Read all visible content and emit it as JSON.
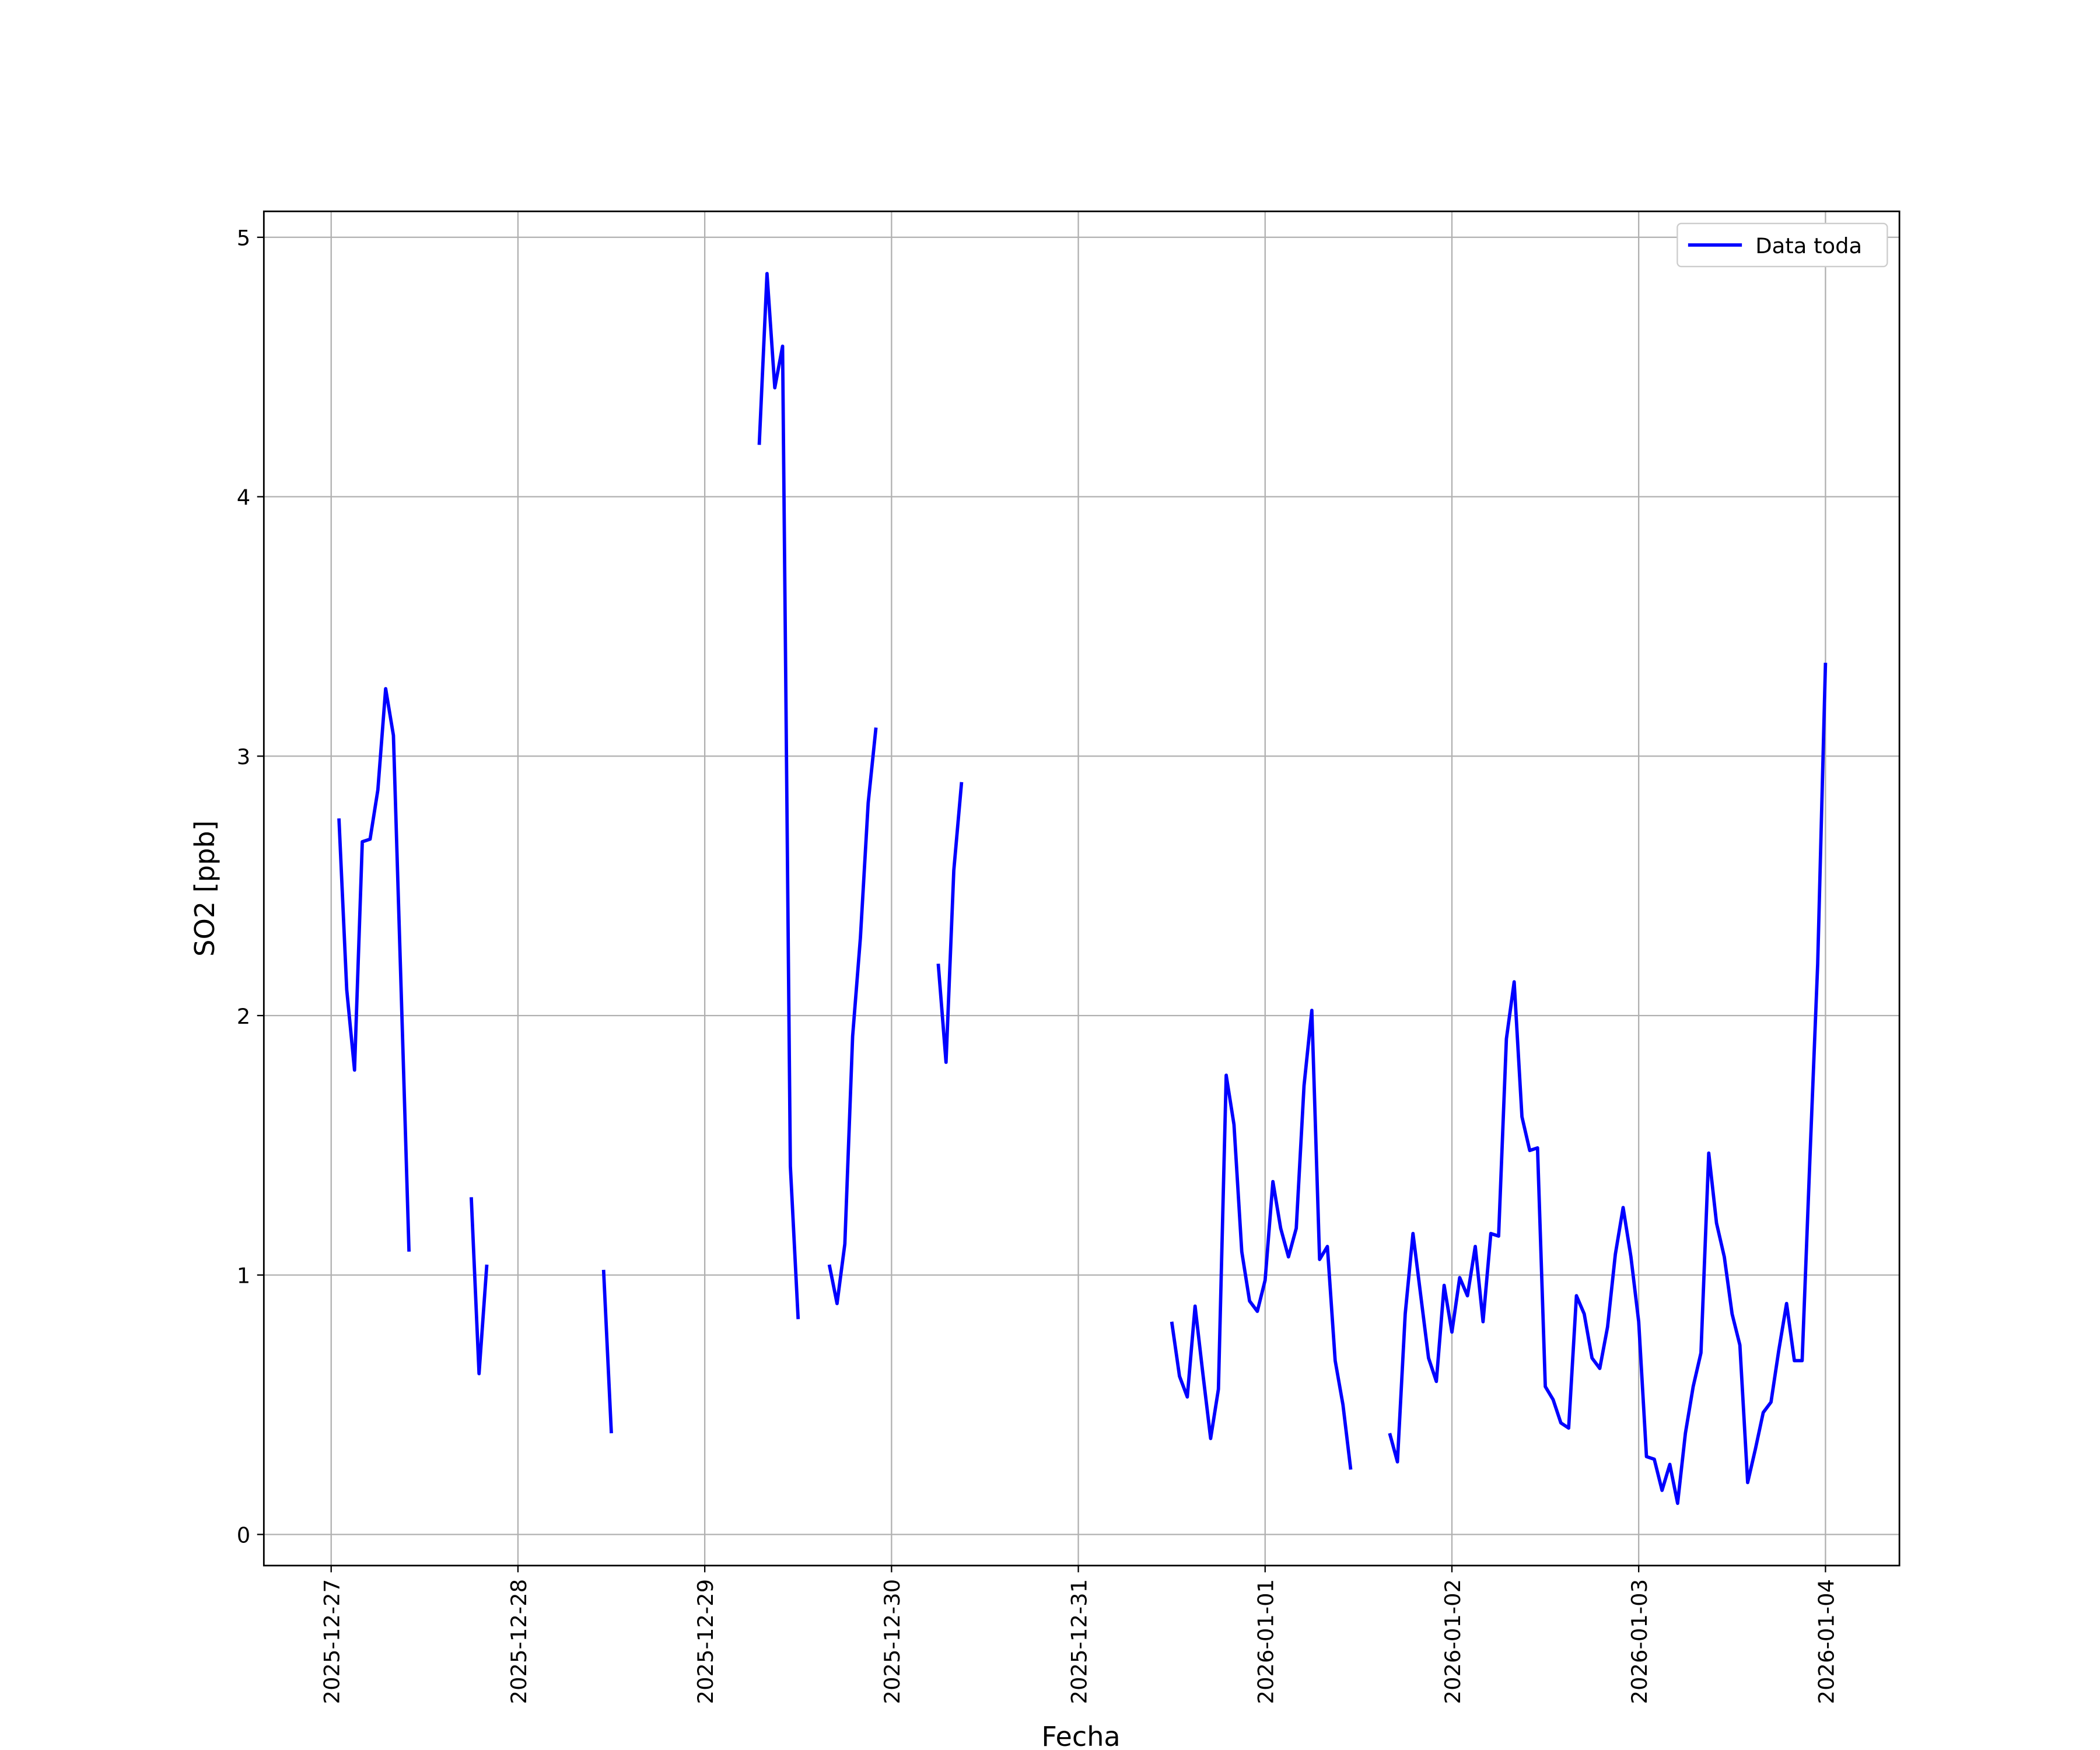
{
  "chart_data": {
    "type": "line",
    "x_label": "Fecha",
    "y_label": "SO2 [ppb]",
    "xlim": [
      "2025-12-26 15:21",
      "2026-01-04 09:30"
    ],
    "xticks": [
      "2025-12-27",
      "2025-12-28",
      "2025-12-29",
      "2025-12-30",
      "2025-12-31",
      "2026-01-01",
      "2026-01-02",
      "2026-01-03",
      "2026-01-04"
    ],
    "ylim": [
      -0.12,
      5.1
    ],
    "yticks": [
      0,
      1,
      2,
      3,
      4,
      5
    ],
    "grid": true,
    "legend": "upper right",
    "series": [
      {
        "name": "Data toda",
        "color": "#0000ff",
        "x": [
          "2025-12-27 01:00",
          "2025-12-27 02:00",
          "2025-12-27 03:00",
          "2025-12-27 04:00",
          "2025-12-27 05:00",
          "2025-12-27 06:00",
          "2025-12-27 07:00",
          "2025-12-27 08:00",
          "2025-12-27 09:00",
          "2025-12-27 10:00",
          "2025-12-27 11:00",
          "2025-12-27 18:00",
          "2025-12-27 19:00",
          "2025-12-27 20:00",
          "2025-12-27 21:00",
          "2025-12-28 11:00",
          "2025-12-28 12:00",
          "2025-12-28 13:00",
          "2025-12-29 07:00",
          "2025-12-29 08:00",
          "2025-12-29 09:00",
          "2025-12-29 10:00",
          "2025-12-29 11:00",
          "2025-12-29 12:00",
          "2025-12-29 13:00",
          "2025-12-29 16:00",
          "2025-12-29 17:00",
          "2025-12-29 18:00",
          "2025-12-29 19:00",
          "2025-12-29 20:00",
          "2025-12-29 21:00",
          "2025-12-29 22:00",
          "2025-12-29 23:00",
          "2025-12-30 06:00",
          "2025-12-30 07:00",
          "2025-12-30 08:00",
          "2025-12-30 09:00",
          "2025-12-30 10:00",
          "2025-12-31 12:00",
          "2025-12-31 13:00",
          "2025-12-31 14:00",
          "2025-12-31 15:00",
          "2025-12-31 16:00",
          "2025-12-31 17:00",
          "2025-12-31 18:00",
          "2025-12-31 19:00",
          "2025-12-31 20:00",
          "2025-12-31 21:00",
          "2025-12-31 22:00",
          "2025-12-31 23:00",
          "2026-01-01 00:00",
          "2026-01-01 01:00",
          "2026-01-01 02:00",
          "2026-01-01 03:00",
          "2026-01-01 04:00",
          "2026-01-01 05:00",
          "2026-01-01 06:00",
          "2026-01-01 07:00",
          "2026-01-01 08:00",
          "2026-01-01 09:00",
          "2026-01-01 10:00",
          "2026-01-01 11:00",
          "2026-01-01 12:00",
          "2026-01-01 16:00",
          "2026-01-01 17:00",
          "2026-01-01 18:00",
          "2026-01-01 19:00",
          "2026-01-01 20:00",
          "2026-01-01 21:00",
          "2026-01-01 22:00",
          "2026-01-01 23:00",
          "2026-01-02 00:00",
          "2026-01-02 01:00",
          "2026-01-02 02:00",
          "2026-01-02 03:00",
          "2026-01-02 04:00",
          "2026-01-02 05:00",
          "2026-01-02 06:00",
          "2026-01-02 07:00",
          "2026-01-02 08:00",
          "2026-01-02 09:00",
          "2026-01-02 10:00",
          "2026-01-02 11:00",
          "2026-01-02 12:00",
          "2026-01-02 13:00",
          "2026-01-02 14:00",
          "2026-01-02 15:00",
          "2026-01-02 16:00",
          "2026-01-02 17:00",
          "2026-01-02 18:00",
          "2026-01-02 19:00",
          "2026-01-02 20:00",
          "2026-01-02 21:00",
          "2026-01-02 22:00",
          "2026-01-02 23:00",
          "2026-01-03 00:00",
          "2026-01-03 01:00",
          "2026-01-03 02:00",
          "2026-01-03 03:00",
          "2026-01-03 04:00",
          "2026-01-03 05:00",
          "2026-01-03 06:00",
          "2026-01-03 07:00",
          "2026-01-03 08:00",
          "2026-01-03 09:00",
          "2026-01-03 10:00",
          "2026-01-03 11:00",
          "2026-01-03 12:00",
          "2026-01-03 13:00",
          "2026-01-03 14:00",
          "2026-01-03 15:00",
          "2026-01-03 16:00",
          "2026-01-03 17:00",
          "2026-01-03 18:00",
          "2026-01-03 19:00",
          "2026-01-03 20:00",
          "2026-01-03 21:00",
          "2026-01-03 22:00",
          "2026-01-03 23:00",
          "2026-01-04 00:00"
        ],
        "values": [
          2.76,
          2.1,
          1.79,
          2.67,
          2.68,
          2.87,
          3.26,
          3.08,
          2.09,
          1.09,
          null,
          1.3,
          0.62,
          1.04,
          null,
          1.02,
          0.39,
          null,
          4.2,
          4.86,
          4.42,
          4.58,
          1.42,
          0.83,
          null,
          1.04,
          0.89,
          1.12,
          1.92,
          2.3,
          2.82,
          3.11,
          null,
          2.2,
          1.82,
          2.56,
          2.9,
          null,
          0.82,
          0.61,
          0.53,
          0.88,
          0.62,
          0.37,
          0.56,
          1.77,
          1.58,
          1.09,
          0.9,
          0.86,
          0.98,
          1.36,
          1.18,
          1.07,
          1.18,
          1.73,
          2.02,
          1.06,
          1.11,
          0.67,
          0.5,
          0.25,
          null,
          0.39,
          0.28,
          0.85,
          1.16,
          0.92,
          0.68,
          0.59,
          0.96,
          0.78,
          0.99,
          0.92,
          1.11,
          0.82,
          1.16,
          1.15,
          1.91,
          2.13,
          1.61,
          1.48,
          1.49,
          0.57,
          0.52,
          0.43,
          0.41,
          0.92,
          0.85,
          0.68,
          0.64,
          0.8,
          1.08,
          1.26,
          1.07,
          0.82,
          0.3,
          0.29,
          0.17,
          0.27,
          0.12,
          0.39,
          0.57,
          0.7,
          1.47,
          1.2,
          1.07,
          0.85,
          0.73,
          0.2,
          0.33,
          0.47,
          0.51,
          0.71,
          0.89,
          0.67,
          0.67,
          1.45,
          2.2,
          3.36
        ]
      }
    ]
  }
}
